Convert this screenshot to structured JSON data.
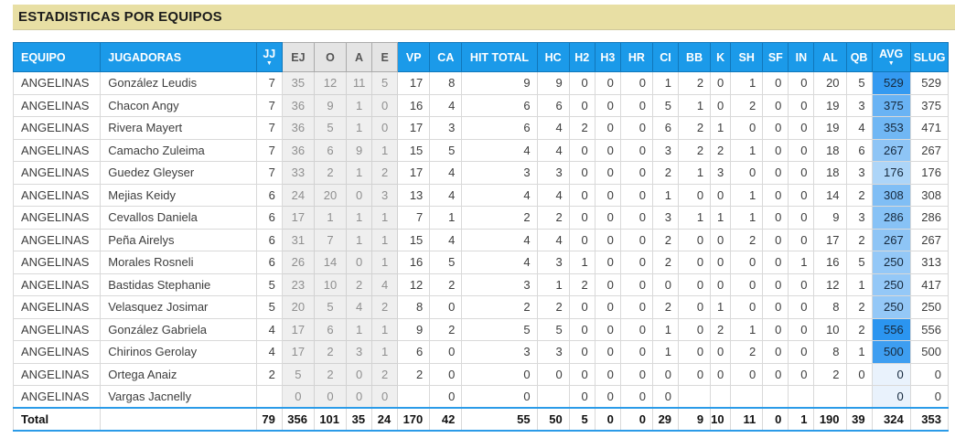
{
  "page_title": "ESTADISTICAS POR EQUIPOS",
  "colors": {
    "title_bar_bg": "#E8DFA4",
    "header_bg": "#1B9AE9",
    "header_border": "#1177BA",
    "muted_header_bg": "#E4E4E4",
    "muted_cell_bg": "#EFEFEF",
    "accent_line": "#2B9BE8",
    "table_outer_border": "#A5C9E8",
    "avg_scale_max": "#2B95F0",
    "avg_scale_min": "#E9F2FC"
  },
  "table": {
    "columns": [
      {
        "label": "EQUIPO",
        "type": "text"
      },
      {
        "label": "JUGADORAS",
        "type": "text"
      },
      {
        "label": "JJ",
        "sorted": true
      },
      {
        "label": "EJ",
        "muted": true
      },
      {
        "label": "O",
        "muted": true
      },
      {
        "label": "A",
        "muted": true
      },
      {
        "label": "E",
        "muted": true
      },
      {
        "label": "VP"
      },
      {
        "label": "CA"
      },
      {
        "label": "HIT TOTAL"
      },
      {
        "label": "HC"
      },
      {
        "label": "H2"
      },
      {
        "label": "H3"
      },
      {
        "label": "HR"
      },
      {
        "label": "CI"
      },
      {
        "label": "BB"
      },
      {
        "label": "K"
      },
      {
        "label": "SH"
      },
      {
        "label": "SF"
      },
      {
        "label": "IN"
      },
      {
        "label": "AL"
      },
      {
        "label": "QB"
      },
      {
        "label": "AVG",
        "sorted": true
      },
      {
        "label": "SLUG"
      }
    ],
    "rows": [
      {
        "equipo": "ANGELINAS",
        "jugadora": "González Leudis",
        "stats": [
          "7",
          "35",
          "12",
          "11",
          "5",
          "17",
          "8",
          "9",
          "9",
          "0",
          "0",
          "0",
          "1",
          "2",
          "0",
          "1",
          "0",
          "0",
          "20",
          "5",
          "529",
          "529"
        ],
        "avg_color": "#349AF1"
      },
      {
        "equipo": "ANGELINAS",
        "jugadora": "Chacon Angy",
        "stats": [
          "7",
          "36",
          "9",
          "1",
          "0",
          "16",
          "4",
          "6",
          "6",
          "0",
          "0",
          "0",
          "5",
          "1",
          "0",
          "2",
          "0",
          "0",
          "19",
          "3",
          "375",
          "375"
        ],
        "avg_color": "#69B3F4"
      },
      {
        "equipo": "ANGELINAS",
        "jugadora": "Rivera Mayert",
        "stats": [
          "7",
          "36",
          "5",
          "1",
          "0",
          "17",
          "3",
          "6",
          "4",
          "2",
          "0",
          "0",
          "6",
          "2",
          "1",
          "0",
          "0",
          "0",
          "19",
          "4",
          "353",
          "471"
        ],
        "avg_color": "#70B7F4"
      },
      {
        "equipo": "ANGELINAS",
        "jugadora": "Camacho Zuleima",
        "stats": [
          "7",
          "36",
          "6",
          "9",
          "1",
          "15",
          "5",
          "4",
          "4",
          "0",
          "0",
          "0",
          "3",
          "2",
          "2",
          "1",
          "0",
          "0",
          "18",
          "6",
          "267",
          "267"
        ],
        "avg_color": "#8EC5F6"
      },
      {
        "equipo": "ANGELINAS",
        "jugadora": "Guedez Gleyser",
        "stats": [
          "7",
          "33",
          "2",
          "1",
          "2",
          "17",
          "4",
          "3",
          "3",
          "0",
          "0",
          "0",
          "2",
          "1",
          "3",
          "0",
          "0",
          "0",
          "18",
          "3",
          "176",
          "176"
        ],
        "avg_color": "#ADD5F8"
      },
      {
        "equipo": "ANGELINAS",
        "jugadora": "Mejias Keidy",
        "stats": [
          "6",
          "24",
          "20",
          "0",
          "3",
          "13",
          "4",
          "4",
          "4",
          "0",
          "0",
          "0",
          "1",
          "0",
          "0",
          "1",
          "0",
          "0",
          "14",
          "2",
          "308",
          "308"
        ],
        "avg_color": "#80BEF5"
      },
      {
        "equipo": "ANGELINAS",
        "jugadora": "Cevallos Daniela",
        "stats": [
          "6",
          "17",
          "1",
          "1",
          "1",
          "7",
          "1",
          "2",
          "2",
          "0",
          "0",
          "0",
          "3",
          "1",
          "1",
          "1",
          "0",
          "0",
          "9",
          "3",
          "286",
          "286"
        ],
        "avg_color": "#87C2F6"
      },
      {
        "equipo": "ANGELINAS",
        "jugadora": "Peña Airelys",
        "stats": [
          "6",
          "31",
          "7",
          "1",
          "1",
          "15",
          "4",
          "4",
          "4",
          "0",
          "0",
          "0",
          "2",
          "0",
          "0",
          "2",
          "0",
          "0",
          "17",
          "2",
          "267",
          "267"
        ],
        "avg_color": "#8EC5F6"
      },
      {
        "equipo": "ANGELINAS",
        "jugadora": "Morales Rosneli",
        "stats": [
          "6",
          "26",
          "14",
          "0",
          "1",
          "16",
          "5",
          "4",
          "3",
          "1",
          "0",
          "0",
          "2",
          "0",
          "0",
          "0",
          "0",
          "1",
          "16",
          "5",
          "250",
          "313"
        ],
        "avg_color": "#94C8F7"
      },
      {
        "equipo": "ANGELINAS",
        "jugadora": "Bastidas Stephanie",
        "stats": [
          "5",
          "23",
          "10",
          "2",
          "4",
          "12",
          "2",
          "3",
          "1",
          "2",
          "0",
          "0",
          "0",
          "0",
          "0",
          "0",
          "0",
          "0",
          "12",
          "1",
          "250",
          "417"
        ],
        "avg_color": "#94C8F7"
      },
      {
        "equipo": "ANGELINAS",
        "jugadora": "Velasquez Josimar",
        "stats": [
          "5",
          "20",
          "5",
          "4",
          "2",
          "8",
          "0",
          "2",
          "2",
          "0",
          "0",
          "0",
          "2",
          "0",
          "1",
          "0",
          "0",
          "0",
          "8",
          "2",
          "250",
          "250"
        ],
        "avg_color": "#94C8F7"
      },
      {
        "equipo": "ANGELINAS",
        "jugadora": "González Gabriela",
        "stats": [
          "4",
          "17",
          "6",
          "1",
          "1",
          "9",
          "2",
          "5",
          "5",
          "0",
          "0",
          "0",
          "1",
          "0",
          "2",
          "1",
          "0",
          "0",
          "10",
          "2",
          "556",
          "556"
        ],
        "avg_color": "#2B95F0"
      },
      {
        "equipo": "ANGELINAS",
        "jugadora": "Chirinos Gerolay",
        "stats": [
          "4",
          "17",
          "2",
          "3",
          "1",
          "6",
          "0",
          "3",
          "3",
          "0",
          "0",
          "0",
          "1",
          "0",
          "0",
          "2",
          "0",
          "0",
          "8",
          "1",
          "500",
          "500"
        ],
        "avg_color": "#3E9EF1"
      },
      {
        "equipo": "ANGELINAS",
        "jugadora": "Ortega Anaiz",
        "stats": [
          "2",
          "5",
          "2",
          "0",
          "2",
          "2",
          "0",
          "0",
          "0",
          "0",
          "0",
          "0",
          "0",
          "0",
          "0",
          "0",
          "0",
          "0",
          "2",
          "0",
          "0",
          "0"
        ],
        "avg_color": "#E9F2FC"
      },
      {
        "equipo": "ANGELINAS",
        "jugadora": "Vargas Jacnelly",
        "stats": [
          "",
          "0",
          "0",
          "0",
          "0",
          "",
          "0",
          "0",
          "",
          "0",
          "0",
          "0",
          "0",
          "",
          "",
          "",
          "",
          "",
          "",
          "",
          "0",
          "0"
        ],
        "avg_color": "#E9F2FC"
      }
    ],
    "total": {
      "label": "Total",
      "stats": [
        "79",
        "356",
        "101",
        "35",
        "24",
        "170",
        "42",
        "55",
        "50",
        "5",
        "0",
        "0",
        "29",
        "9",
        "10",
        "11",
        "0",
        "1",
        "190",
        "39",
        "324",
        "353"
      ]
    }
  }
}
